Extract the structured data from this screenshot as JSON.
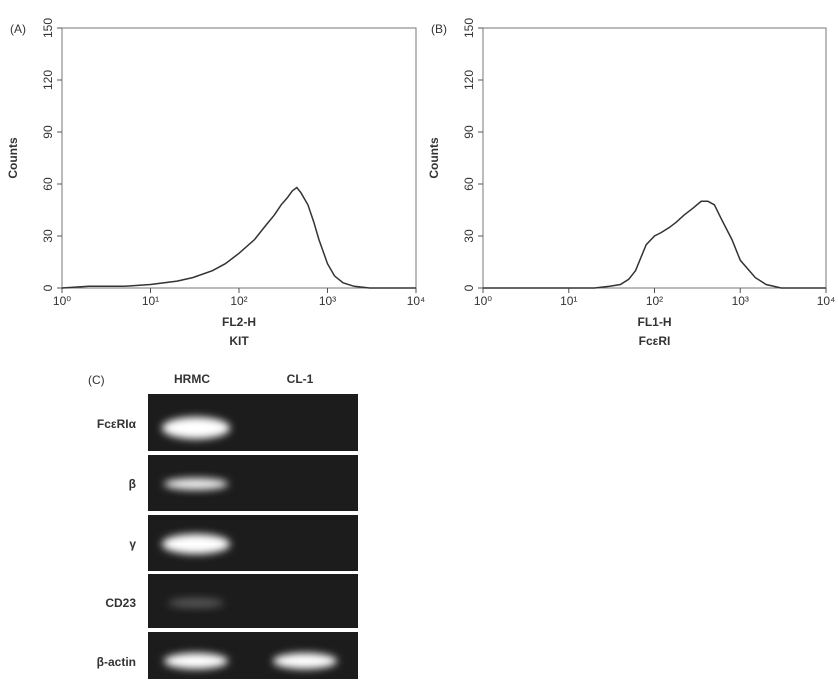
{
  "chart_data": [
    {
      "type": "line",
      "label": "(A)",
      "ylabel": "Counts",
      "xlabel": "FL2-H",
      "marker": "KIT",
      "xscale": "log",
      "color": "#333333",
      "x": [
        1,
        2,
        5,
        10,
        20,
        30,
        50,
        70,
        100,
        150,
        200,
        250,
        300,
        350,
        400,
        450,
        500,
        600,
        700,
        800,
        1000,
        1200,
        1500,
        2000,
        3000,
        5000,
        10000
      ],
      "values": [
        0,
        1,
        1,
        2,
        4,
        6,
        10,
        14,
        20,
        28,
        36,
        42,
        48,
        52,
        56,
        58,
        55,
        48,
        38,
        28,
        14,
        7,
        3,
        1,
        0,
        0,
        0
      ],
      "xlim": [
        1,
        10000
      ],
      "xticks": [
        {
          "value": 1,
          "label": "10⁰"
        },
        {
          "value": 10,
          "label": "10¹"
        },
        {
          "value": 100,
          "label": "10²"
        },
        {
          "value": 1000,
          "label": "10³"
        },
        {
          "value": 10000,
          "label": "10⁴"
        }
      ],
      "ylim": [
        0,
        150
      ],
      "yticks": [
        0,
        30,
        60,
        90,
        120,
        150
      ]
    },
    {
      "type": "line",
      "label": "(B)",
      "ylabel": "Counts",
      "xlabel": "FL1-H",
      "marker": "FcεRI",
      "xscale": "log",
      "color": "#333333",
      "x": [
        1,
        2,
        5,
        10,
        20,
        30,
        40,
        50,
        60,
        70,
        80,
        100,
        120,
        150,
        180,
        220,
        280,
        350,
        420,
        500,
        600,
        800,
        1000,
        1500,
        2000,
        3000,
        10000
      ],
      "values": [
        0,
        0,
        0,
        0,
        0,
        1,
        2,
        5,
        10,
        18,
        25,
        30,
        32,
        35,
        38,
        42,
        46,
        50,
        50,
        48,
        40,
        28,
        16,
        6,
        2,
        0,
        0
      ],
      "xlim": [
        1,
        10000
      ],
      "xticks": [
        {
          "value": 1,
          "label": "10⁰"
        },
        {
          "value": 10,
          "label": "10¹"
        },
        {
          "value": 100,
          "label": "10²"
        },
        {
          "value": 1000,
          "label": "10³"
        },
        {
          "value": 10000,
          "label": "10⁴"
        }
      ],
      "ylim": [
        0,
        150
      ],
      "yticks": [
        0,
        30,
        60,
        90,
        120,
        150
      ]
    }
  ],
  "gel": {
    "label": "(C)",
    "lanes": [
      "HRMC",
      "CL-1"
    ],
    "rows": [
      "FcεRIα",
      "β",
      "γ",
      "CD23",
      "β-actin"
    ]
  }
}
